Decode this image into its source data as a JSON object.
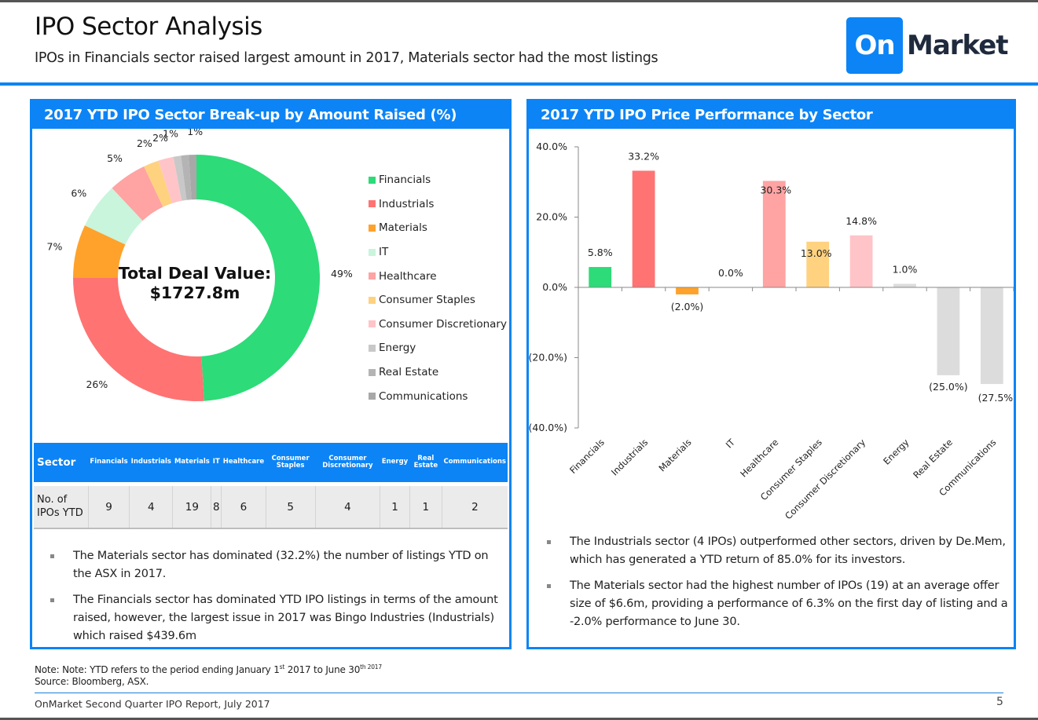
{
  "header": {
    "title": "IPO Sector Analysis",
    "subtitle": "IPOs in Financials sector raised largest amount in 2017, Materials sector had the most listings",
    "logo_box_text": "On",
    "logo_word": "Market"
  },
  "left_panel": {
    "title": "2017 YTD IPO Sector Break-up by Amount Raised (%)",
    "center_label_line1": "Total Deal Value:",
    "center_label_line2": "$1727.8m",
    "table": {
      "header_first": "Sector",
      "row_label": "No. of IPOs YTD",
      "columns": [
        {
          "label": "Financials",
          "value": "9"
        },
        {
          "label": "Industrials",
          "value": "4"
        },
        {
          "label": "Materials",
          "value": "19"
        },
        {
          "label": "IT",
          "value": "8"
        },
        {
          "label": "Healthcare",
          "value": "6"
        },
        {
          "label": "Consumer Staples",
          "value": "5"
        },
        {
          "label": "Consumer Discretionary",
          "value": "4"
        },
        {
          "label": "Energy",
          "value": "1"
        },
        {
          "label": "Real Estate",
          "value": "1"
        },
        {
          "label": "Communications",
          "value": "2"
        }
      ]
    },
    "bullets": [
      "The Materials sector has dominated (32.2%) the number of listings YTD on the ASX in 2017.",
      "The Financials sector has dominated YTD IPO listings in terms of the amount raised, however, the largest issue in 2017 was Bingo Industries (Industrials) which raised $439.6m"
    ]
  },
  "right_panel": {
    "title": "2017 YTD IPO Price Performance by Sector",
    "bullets": [
      "The Industrials sector (4 IPOs) outperformed other sectors, driven by De.Mem, which has generated a YTD return of 85.0% for its investors.",
      "The Materials sector had the highest number of IPOs (19) at an average offer size of $6.6m, providing a performance of 6.3% on the first day of listing and a -2.0% performance to June 30."
    ]
  },
  "chart_data": [
    {
      "type": "pie",
      "variant": "donut",
      "title": "2017 YTD IPO Sector Break-up by Amount Raised (%)",
      "center_text": "Total Deal Value: $1727.8m",
      "legend_position": "right",
      "categories": [
        "Financials",
        "Industrials",
        "Materials",
        "IT",
        "Healthcare",
        "Consumer Staples",
        "Consumer Discretionary",
        "Energy",
        "Real Estate",
        "Communications"
      ],
      "values": [
        49,
        26,
        7,
        6,
        5,
        2,
        2,
        1,
        1,
        1
      ],
      "labels": [
        "49%",
        "26%",
        "7%",
        "6%",
        "5%",
        "2%",
        "2%",
        "1%",
        "1%",
        "1%"
      ],
      "colors": [
        "#2ddb78",
        "#ff7373",
        "#ffa22b",
        "#c8f5dc",
        "#ffa3a3",
        "#ffd280",
        "#ffc4c8",
        "#c8c8c8",
        "#b4b4b4",
        "#a8a8a8"
      ]
    },
    {
      "type": "bar",
      "title": "2017 YTD IPO Price Performance by Sector",
      "categories": [
        "Financials",
        "Industrials",
        "Materials",
        "IT",
        "Healthcare",
        "Consumer Staples",
        "Consumer Discretionary",
        "Energy",
        "Real Estate",
        "Communications"
      ],
      "values": [
        5.8,
        33.2,
        -2.0,
        0.0,
        30.3,
        13.0,
        14.8,
        1.0,
        -25.0,
        -27.5
      ],
      "labels": [
        "5.8%",
        "33.2%",
        "(2.0%)",
        "0.0%",
        "30.3%",
        "13.0%",
        "14.8%",
        "1.0%",
        "(25.0%)",
        "(27.5%)"
      ],
      "colors": [
        "#2ddb78",
        "#ff7373",
        "#ffa22b",
        "#c8f5dc",
        "#ffa3a3",
        "#ffd280",
        "#ffc4c8",
        "#dcdcdc",
        "#dcdcdc",
        "#dcdcdc"
      ],
      "xlabel": "",
      "ylabel": "",
      "ylim": [
        -40,
        40
      ],
      "yticks": [
        40,
        20,
        0,
        -20,
        -40
      ],
      "ytick_labels": [
        "40.0%",
        "20.0%",
        "0.0%",
        "(20.0%)",
        "(40.0%)"
      ],
      "grid": false,
      "legend": false
    }
  ],
  "footer": {
    "note_prefix": "Note: Note: YTD refers to the period ending January 1",
    "note_sup1": "st",
    "note_mid": " 2017 to June 30",
    "note_sup2": "th 2017",
    "source": "Source: Bloomberg, ASX.",
    "report": "OnMarket Second Quarter IPO Report, July 2017",
    "page": "5"
  }
}
